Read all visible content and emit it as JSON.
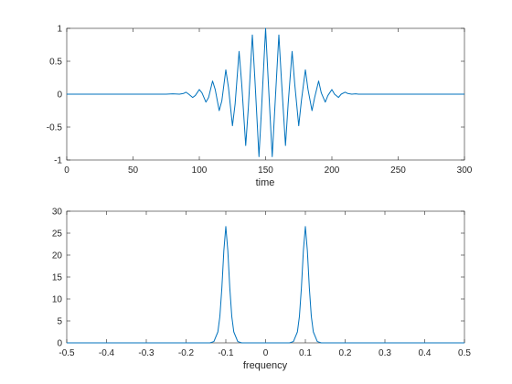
{
  "chart_data": [
    {
      "type": "line",
      "title": "",
      "xlabel": "time",
      "ylabel": "",
      "xlim": [
        0,
        300
      ],
      "ylim": [
        -1,
        1
      ],
      "grid": false,
      "xticks": [
        0,
        50,
        100,
        150,
        200,
        250,
        300
      ],
      "xtick_labels": [
        "0",
        "50",
        "100",
        "150",
        "200",
        "250",
        "300"
      ],
      "yticks": [
        -1,
        -0.5,
        0,
        0.5,
        1
      ],
      "ytick_labels": [
        "-1",
        "-0.5",
        "0",
        "0.5",
        "1"
      ],
      "line_color": "#0072BD",
      "series": [
        {
          "x": [
            0,
            75,
            80,
            85,
            88,
            90,
            92,
            95,
            97,
            100,
            102,
            105,
            107,
            110,
            112,
            115,
            117,
            120,
            122,
            125,
            127,
            130,
            132,
            135,
            137,
            140,
            142,
            145,
            147,
            150,
            152,
            155,
            157,
            160,
            162,
            165,
            167,
            170,
            172,
            175,
            177,
            180,
            182,
            185,
            187,
            190,
            192,
            195,
            197,
            200,
            202,
            205,
            207,
            210,
            212,
            215,
            218,
            220,
            225,
            300
          ],
          "y": [
            0,
            0,
            0.005,
            0,
            0.01,
            0.03,
            0,
            -0.05,
            -0.02,
            0.07,
            0.02,
            -0.12,
            -0.05,
            0.2,
            0.07,
            -0.25,
            -0.1,
            0.37,
            0.1,
            -0.48,
            -0.15,
            0.65,
            0.15,
            -0.78,
            -0.2,
            0.9,
            0.2,
            -0.95,
            -0.2,
            1,
            0.2,
            -0.95,
            -0.2,
            0.9,
            0.2,
            -0.78,
            -0.15,
            0.65,
            0.15,
            -0.48,
            -0.1,
            0.37,
            0.07,
            -0.25,
            -0.05,
            0.2,
            0.02,
            -0.12,
            -0.02,
            0.07,
            0,
            -0.05,
            0,
            0.03,
            0.01,
            0,
            0.005,
            0,
            0,
            0
          ]
        }
      ]
    },
    {
      "type": "line",
      "title": "",
      "xlabel": "frequency",
      "ylabel": "",
      "xlim": [
        -0.5,
        0.5
      ],
      "ylim": [
        0,
        30
      ],
      "grid": false,
      "xticks": [
        -0.5,
        -0.4,
        -0.3,
        -0.2,
        -0.1,
        0,
        0.1,
        0.2,
        0.3,
        0.4,
        0.5
      ],
      "xtick_labels": [
        "-0.5",
        "-0.4",
        "-0.3",
        "-0.2",
        "-0.1",
        "0",
        "0.1",
        "0.2",
        "0.3",
        "0.4",
        "0.5"
      ],
      "yticks": [
        0,
        5,
        10,
        15,
        20,
        25,
        30
      ],
      "ytick_labels": [
        "0",
        "5",
        "10",
        "15",
        "20",
        "25",
        "30"
      ],
      "line_color": "#0072BD",
      "series": [
        {
          "x": [
            -0.5,
            -0.14,
            -0.13,
            -0.12,
            -0.115,
            -0.11,
            -0.105,
            -0.1,
            -0.095,
            -0.09,
            -0.085,
            -0.08,
            -0.07,
            -0.06,
            0.06,
            0.07,
            0.08,
            0.085,
            0.09,
            0.095,
            0.1,
            0.105,
            0.11,
            0.115,
            0.12,
            0.13,
            0.14,
            0.5
          ],
          "y": [
            0,
            0,
            0.3,
            2.5,
            6,
            12.5,
            21,
            26.5,
            21,
            12.5,
            6,
            2.5,
            0.3,
            0,
            0,
            0.3,
            2.5,
            6,
            12.5,
            21,
            26.5,
            21,
            12.5,
            6,
            2.5,
            0.3,
            0,
            0
          ]
        }
      ]
    }
  ]
}
